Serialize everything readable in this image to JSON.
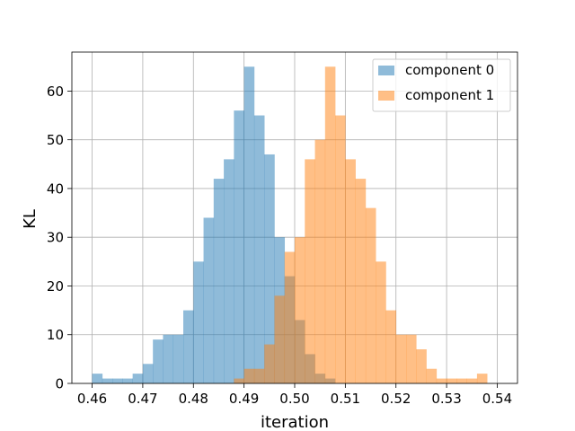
{
  "chart_data": {
    "type": "bar",
    "subtype": "histogram",
    "xlabel": "iteration",
    "ylabel": "KL",
    "xlim": [
      0.456,
      0.544
    ],
    "ylim": [
      0,
      68
    ],
    "xticks": [
      "0.46",
      "0.47",
      "0.48",
      "0.49",
      "0.50",
      "0.51",
      "0.52",
      "0.53",
      "0.54"
    ],
    "yticks": [
      "0",
      "10",
      "20",
      "30",
      "40",
      "50",
      "60"
    ],
    "grid": true,
    "legend_position": "top-right",
    "bin_width": 0.002,
    "series": [
      {
        "name": "component 0",
        "color": "#1f77b4",
        "alpha": 0.5,
        "bin_start": 0.46,
        "values": [
          2,
          1,
          1,
          1,
          2,
          4,
          9,
          10,
          10,
          15,
          25,
          34,
          42,
          46,
          56,
          65,
          55,
          47,
          30,
          22,
          13,
          6,
          2,
          1,
          0
        ]
      },
      {
        "name": "component 1",
        "color": "#ff7f0e",
        "alpha": 0.5,
        "bin_start": 0.488,
        "values": [
          1,
          3,
          3,
          8,
          18,
          27,
          30,
          46,
          50,
          65,
          55,
          46,
          42,
          36,
          25,
          15,
          10,
          10,
          7,
          3,
          1,
          1,
          1,
          1,
          2
        ]
      }
    ]
  }
}
